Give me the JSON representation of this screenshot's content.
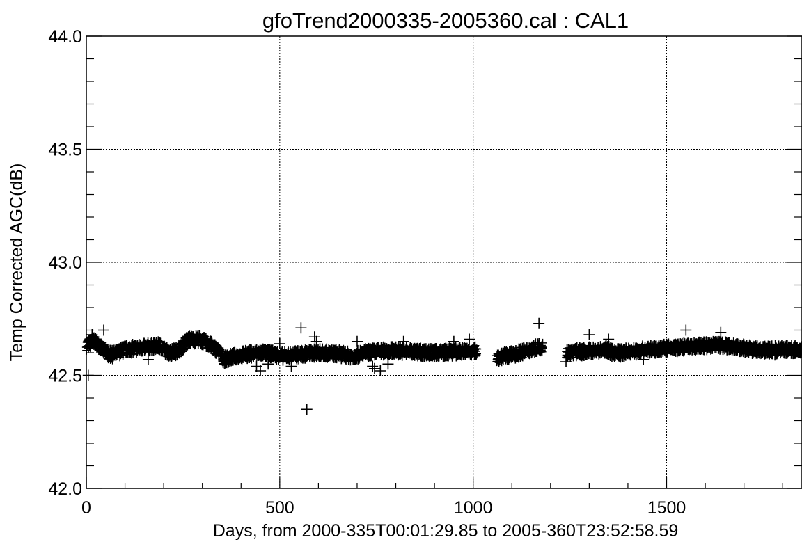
{
  "chart_data": {
    "type": "scatter",
    "title": "gfoTrend2000335-2005360.cal : CAL1",
    "xlabel": "Days, from 2000-335T00:01:29.85 to 2005-360T23:52:58.59",
    "ylabel": "Temp Corrected AGC(dB)",
    "xlim": [
      0,
      1850
    ],
    "ylim": [
      42.0,
      44.0
    ],
    "x_ticks": [
      0,
      500,
      1000,
      1500
    ],
    "x_tick_labels": [
      "0",
      "500",
      "1000",
      "1500"
    ],
    "y_ticks": [
      42.0,
      42.5,
      43.0,
      43.5,
      44.0
    ],
    "y_tick_labels": [
      "42.0",
      "42.5",
      "43.0",
      "43.5",
      "44.0"
    ],
    "grid": true,
    "marker": "plus",
    "color": "#000000",
    "dense_band": [
      {
        "x": 0,
        "y": 42.635
      },
      {
        "x": 20,
        "y": 42.65
      },
      {
        "x": 35,
        "y": 42.63
      },
      {
        "x": 50,
        "y": 42.6
      },
      {
        "x": 65,
        "y": 42.59
      },
      {
        "x": 80,
        "y": 42.6
      },
      {
        "x": 100,
        "y": 42.615
      },
      {
        "x": 130,
        "y": 42.62
      },
      {
        "x": 160,
        "y": 42.625
      },
      {
        "x": 190,
        "y": 42.63
      },
      {
        "x": 200,
        "y": 42.615
      },
      {
        "x": 215,
        "y": 42.6
      },
      {
        "x": 230,
        "y": 42.605
      },
      {
        "x": 245,
        "y": 42.62
      },
      {
        "x": 260,
        "y": 42.655
      },
      {
        "x": 290,
        "y": 42.66
      },
      {
        "x": 310,
        "y": 42.645
      },
      {
        "x": 330,
        "y": 42.625
      },
      {
        "x": 345,
        "y": 42.6
      },
      {
        "x": 355,
        "y": 42.57
      },
      {
        "x": 375,
        "y": 42.58
      },
      {
        "x": 400,
        "y": 42.59
      },
      {
        "x": 450,
        "y": 42.6
      },
      {
        "x": 480,
        "y": 42.595
      },
      {
        "x": 510,
        "y": 42.585
      },
      {
        "x": 540,
        "y": 42.59
      },
      {
        "x": 570,
        "y": 42.595
      },
      {
        "x": 600,
        "y": 42.6
      },
      {
        "x": 650,
        "y": 42.595
      },
      {
        "x": 690,
        "y": 42.585
      },
      {
        "x": 720,
        "y": 42.6
      },
      {
        "x": 780,
        "y": 42.61
      },
      {
        "x": 840,
        "y": 42.605
      },
      {
        "x": 900,
        "y": 42.6
      },
      {
        "x": 960,
        "y": 42.605
      },
      {
        "x": 1000,
        "y": 42.605
      },
      {
        "x": 1010,
        "y": 42.61
      }
    ],
    "dense_band_2": [
      {
        "x": 1060,
        "y": 42.58
      },
      {
        "x": 1080,
        "y": 42.585
      },
      {
        "x": 1100,
        "y": 42.59
      },
      {
        "x": 1120,
        "y": 42.6
      },
      {
        "x": 1140,
        "y": 42.61
      },
      {
        "x": 1160,
        "y": 42.62
      },
      {
        "x": 1180,
        "y": 42.63
      }
    ],
    "dense_band_3": [
      {
        "x": 1240,
        "y": 42.6
      },
      {
        "x": 1280,
        "y": 42.605
      },
      {
        "x": 1320,
        "y": 42.61
      },
      {
        "x": 1345,
        "y": 42.615
      },
      {
        "x": 1360,
        "y": 42.6
      },
      {
        "x": 1380,
        "y": 42.6
      },
      {
        "x": 1400,
        "y": 42.605
      },
      {
        "x": 1430,
        "y": 42.61
      },
      {
        "x": 1460,
        "y": 42.615
      },
      {
        "x": 1500,
        "y": 42.62
      },
      {
        "x": 1550,
        "y": 42.625
      },
      {
        "x": 1600,
        "y": 42.63
      },
      {
        "x": 1640,
        "y": 42.635
      },
      {
        "x": 1680,
        "y": 42.625
      },
      {
        "x": 1720,
        "y": 42.615
      },
      {
        "x": 1760,
        "y": 42.61
      },
      {
        "x": 1800,
        "y": 42.615
      },
      {
        "x": 1850,
        "y": 42.615
      }
    ],
    "outliers": [
      {
        "x": 5,
        "y": 42.5
      },
      {
        "x": 15,
        "y": 42.68
      },
      {
        "x": 45,
        "y": 42.7
      },
      {
        "x": 160,
        "y": 42.57
      },
      {
        "x": 440,
        "y": 42.54
      },
      {
        "x": 450,
        "y": 42.52
      },
      {
        "x": 470,
        "y": 42.55
      },
      {
        "x": 500,
        "y": 42.64
      },
      {
        "x": 530,
        "y": 42.54
      },
      {
        "x": 555,
        "y": 42.71
      },
      {
        "x": 570,
        "y": 42.35
      },
      {
        "x": 590,
        "y": 42.67
      },
      {
        "x": 595,
        "y": 42.65
      },
      {
        "x": 700,
        "y": 42.65
      },
      {
        "x": 740,
        "y": 42.54
      },
      {
        "x": 745,
        "y": 42.53
      },
      {
        "x": 760,
        "y": 42.52
      },
      {
        "x": 780,
        "y": 42.55
      },
      {
        "x": 820,
        "y": 42.65
      },
      {
        "x": 950,
        "y": 42.65
      },
      {
        "x": 990,
        "y": 42.66
      },
      {
        "x": 1170,
        "y": 42.73
      },
      {
        "x": 1240,
        "y": 42.56
      },
      {
        "x": 1300,
        "y": 42.68
      },
      {
        "x": 1350,
        "y": 42.66
      },
      {
        "x": 1380,
        "y": 42.58
      },
      {
        "x": 1440,
        "y": 42.57
      },
      {
        "x": 1550,
        "y": 42.7
      },
      {
        "x": 1640,
        "y": 42.69
      },
      {
        "x": 1780,
        "y": 42.59
      }
    ]
  }
}
